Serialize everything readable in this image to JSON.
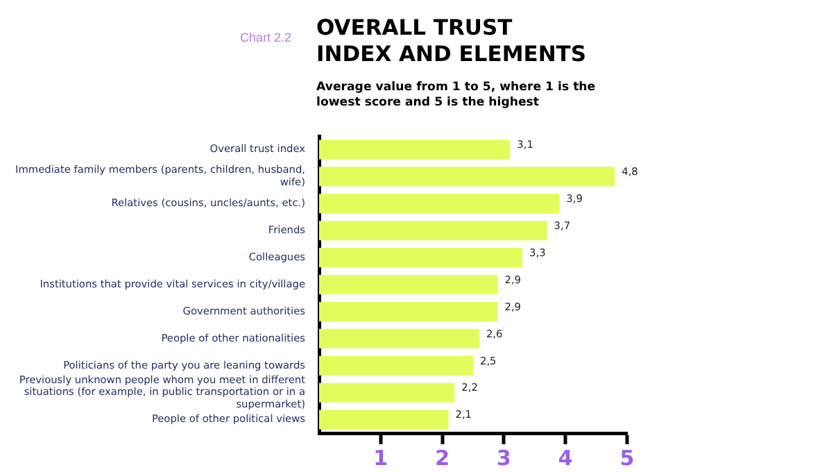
{
  "chart_data": {
    "type": "bar",
    "orientation": "horizontal",
    "title": "OVERALL TRUST INDEX AND ELEMENTS",
    "subtitle": "Average value from 1 to 5, where 1 is the lowest score and 5 is the highest",
    "annotations": [
      "Chart  2.2"
    ],
    "categories": [
      "Overall trust index",
      "Immediate family members (parents, children, husband, wife)",
      "Relatives (cousins, uncles/aunts, etc.)",
      "Friends",
      "Colleagues",
      "Institutions that provide vital services in city/village",
      "Government authorities",
      "People of other nationalities",
      "Politicians of the party you are leaning towards",
      "Previously unknown people whom you meet in different situations (for example, in public transportation or in a supermarket)",
      "People of other political views"
    ],
    "values": [
      3.1,
      4.8,
      3.9,
      3.7,
      3.3,
      2.9,
      2.9,
      2.6,
      2.5,
      2.2,
      2.1
    ],
    "value_labels": [
      "3,1",
      "4,8",
      "3,9",
      "3,7",
      "3,3",
      "2,9",
      "2,9",
      "2,6",
      "2,5",
      "2,2",
      "2,1"
    ],
    "color": "#e1fd5b",
    "xlim": [
      0,
      5
    ],
    "xticks": [
      1,
      2,
      3,
      4,
      5
    ],
    "grid": false,
    "legend": false
  }
}
